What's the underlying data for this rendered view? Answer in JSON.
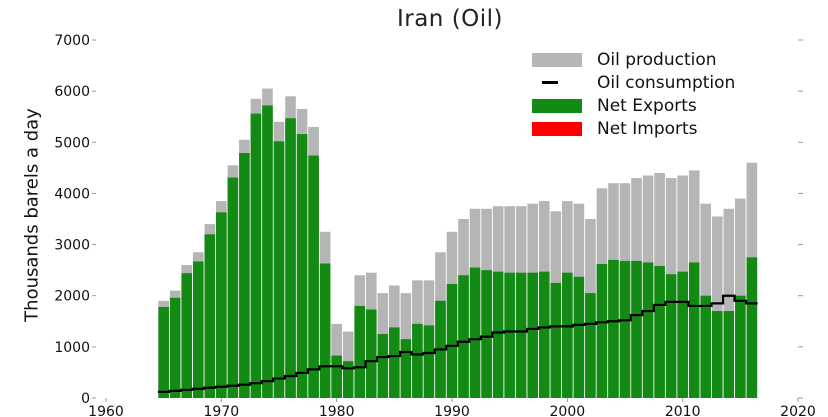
{
  "chart_data": {
    "type": "bar",
    "title": "Iran (Oil)",
    "ylabel": "Thousands barels a day",
    "xlabel": "",
    "xlim": [
      1960,
      2020
    ],
    "ylim": [
      0,
      7000
    ],
    "x_ticks": [
      1960,
      1970,
      1980,
      1990,
      2000,
      2010,
      2020
    ],
    "y_ticks": [
      0,
      1000,
      2000,
      3000,
      4000,
      5000,
      6000,
      7000
    ],
    "legend_position": "top-right",
    "colors": {
      "production": "#b5b5b5",
      "consumption": "#000000",
      "net_exports": "#138a13",
      "net_imports": "#ff0000"
    },
    "legend": [
      "Oil production",
      "Oil consumption",
      "Net Exports",
      "Net Imports"
    ],
    "years": [
      1965,
      1966,
      1967,
      1968,
      1969,
      1970,
      1971,
      1972,
      1973,
      1974,
      1975,
      1976,
      1977,
      1978,
      1979,
      1980,
      1981,
      1982,
      1983,
      1984,
      1985,
      1986,
      1987,
      1988,
      1989,
      1990,
      1991,
      1992,
      1993,
      1994,
      1995,
      1996,
      1997,
      1998,
      1999,
      2000,
      2001,
      2002,
      2003,
      2004,
      2005,
      2006,
      2007,
      2008,
      2009,
      2010,
      2011,
      2012,
      2013,
      2014,
      2015,
      2016
    ],
    "series": [
      {
        "name": "Oil production",
        "values": [
          1900,
          2100,
          2600,
          2850,
          3400,
          3850,
          4550,
          5050,
          5850,
          6050,
          5400,
          5900,
          5650,
          5300,
          3250,
          1450,
          1300,
          2400,
          2450,
          2050,
          2200,
          2050,
          2300,
          2300,
          2850,
          3250,
          3500,
          3700,
          3700,
          3750,
          3750,
          3750,
          3800,
          3850,
          3650,
          3850,
          3800,
          3500,
          4100,
          4200,
          4200,
          4300,
          4350,
          4400,
          4300,
          4350,
          4450,
          3800,
          3550,
          3700,
          3900,
          4600
        ]
      },
      {
        "name": "Oil consumption",
        "values": [
          120,
          140,
          160,
          180,
          200,
          220,
          240,
          260,
          290,
          330,
          380,
          430,
          490,
          560,
          620,
          620,
          580,
          600,
          720,
          800,
          820,
          900,
          850,
          880,
          950,
          1020,
          1100,
          1150,
          1200,
          1280,
          1300,
          1300,
          1350,
          1380,
          1400,
          1400,
          1430,
          1450,
          1480,
          1500,
          1520,
          1620,
          1700,
          1820,
          1880,
          1880,
          1800,
          1800,
          1850,
          2000,
          1900,
          1850
        ]
      },
      {
        "name": "Net Exports",
        "values": [
          1780,
          1960,
          2440,
          2670,
          3200,
          3630,
          4310,
          4790,
          5560,
          5720,
          5020,
          5470,
          5160,
          4740,
          2630,
          830,
          720,
          1800,
          1730,
          1250,
          1380,
          1150,
          1450,
          1420,
          1900,
          2230,
          2400,
          2550,
          2500,
          2470,
          2450,
          2450,
          2450,
          2470,
          2250,
          2450,
          2370,
          2050,
          2620,
          2700,
          2680,
          2680,
          2650,
          2580,
          2420,
          2470,
          2650,
          2000,
          1700,
          1700,
          2000,
          2750
        ]
      },
      {
        "name": "Net Imports",
        "values": []
      }
    ]
  }
}
